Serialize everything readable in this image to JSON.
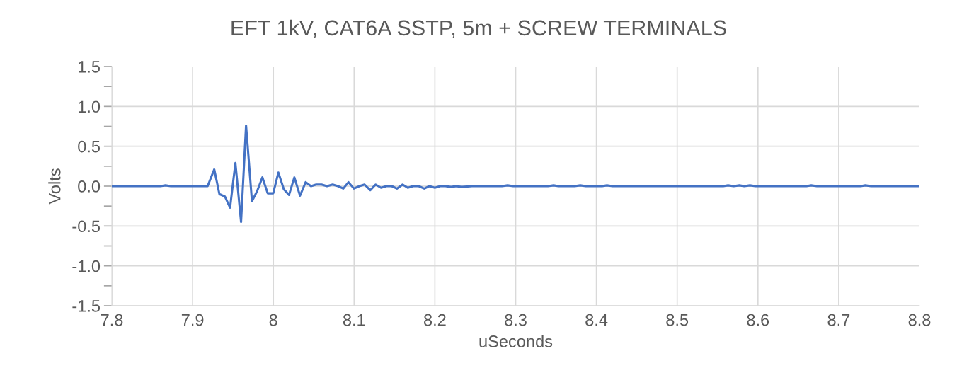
{
  "chart_data": {
    "type": "line",
    "title": "EFT 1kV, CAT6A SSTP, 5m + SCREW TERMINALS",
    "xlabel": "uSeconds",
    "ylabel": "Volts",
    "series": [
      {
        "color": "#4472c4",
        "x": [
          7.8,
          7.86,
          7.8665,
          7.873,
          7.9186,
          7.9268,
          7.9332,
          7.94,
          7.9464,
          7.953,
          7.96,
          7.9662,
          7.9735,
          7.98,
          7.9864,
          7.993,
          7.9998,
          8.0062,
          8.013,
          8.0194,
          8.026,
          8.033,
          8.04,
          8.0466,
          8.053,
          8.0597,
          8.0664,
          8.0734,
          8.08,
          8.0866,
          8.093,
          8.0997,
          8.1065,
          8.1129,
          8.12,
          8.1266,
          8.1333,
          8.14,
          8.1466,
          8.153,
          8.16,
          8.1664,
          8.173,
          8.18,
          8.1868,
          8.1932,
          8.2,
          8.2066,
          8.213,
          8.22,
          8.2265,
          8.233,
          8.246,
          8.283,
          8.29,
          8.297,
          8.34,
          8.347,
          8.353,
          8.373,
          8.38,
          8.387,
          8.407,
          8.413,
          8.42,
          8.557,
          8.563,
          8.57,
          8.577,
          8.583,
          8.59,
          8.597,
          8.66,
          8.666,
          8.673,
          8.727,
          8.733,
          8.74,
          8.8
        ],
        "values": [
          0,
          0,
          0.01,
          0,
          0,
          0.21,
          -0.1,
          -0.13,
          -0.27,
          0.29,
          -0.45,
          0.76,
          -0.19,
          -0.06,
          0.11,
          -0.09,
          -0.09,
          0.17,
          -0.04,
          -0.11,
          0.11,
          -0.12,
          0.05,
          0,
          0.02,
          0.02,
          0,
          0.02,
          0,
          -0.03,
          0.05,
          -0.03,
          0,
          0.02,
          -0.05,
          0.02,
          -0.02,
          0,
          0,
          -0.03,
          0.02,
          -0.02,
          0,
          0,
          -0.03,
          0,
          -0.02,
          0,
          0,
          -0.01,
          0,
          -0.01,
          0,
          0,
          0.01,
          0,
          0,
          0.01,
          0,
          0,
          0.01,
          0,
          0,
          0.01,
          0,
          0,
          0.01,
          0,
          0.01,
          0,
          0.01,
          0,
          0,
          0.01,
          0,
          0,
          0.01,
          0,
          0
        ]
      }
    ],
    "xlim": [
      7.8,
      8.8
    ],
    "xticks": [
      7.8,
      7.9,
      {
        "value": 8.0,
        "label": "8"
      },
      8.1,
      8.2,
      8.3,
      8.4,
      8.5,
      8.6,
      8.7,
      8.8
    ],
    "ylim": [
      -1.5,
      1.5
    ],
    "yticks": [
      {
        "value": -1.5,
        "label": "-1.5"
      },
      {
        "value": -1.25,
        "label": null
      },
      {
        "value": -1.0,
        "label": "-1.0"
      },
      {
        "value": -0.75,
        "label": null
      },
      {
        "value": -0.5,
        "label": "-0.5"
      },
      {
        "value": -0.25,
        "label": null
      },
      {
        "value": 0.0,
        "label": "0.0"
      },
      {
        "value": 0.25,
        "label": null
      },
      {
        "value": 0.5,
        "label": "0.5"
      },
      {
        "value": 0.75,
        "label": null
      },
      {
        "value": 1.0,
        "label": "1.0"
      },
      {
        "value": 1.25,
        "label": null
      },
      {
        "value": 1.5,
        "label": "1.5"
      }
    ],
    "grid": true,
    "marker": "none",
    "line_style": "solid"
  }
}
